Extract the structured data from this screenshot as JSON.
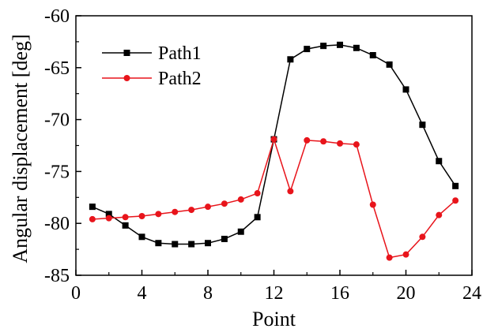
{
  "chart_data": {
    "type": "line",
    "xlabel": "Point",
    "ylabel": "Angular displacement [deg]",
    "xlim": [
      0,
      24
    ],
    "ylim": [
      -85,
      -60
    ],
    "xticks": [
      0,
      4,
      8,
      12,
      16,
      20,
      24
    ],
    "yticks": [
      -85,
      -80,
      -75,
      -70,
      -65,
      -60
    ],
    "xtick_labels": [
      "0",
      "4",
      "8",
      "12",
      "16",
      "20",
      "24"
    ],
    "ytick_labels": [
      "-85",
      "-80",
      "-75",
      "-70",
      "-65",
      "-60"
    ],
    "grid": false,
    "legend_position": "top-left",
    "x": [
      1,
      2,
      3,
      4,
      5,
      6,
      7,
      8,
      9,
      10,
      11,
      12,
      13,
      14,
      15,
      16,
      17,
      18,
      19,
      20,
      21,
      22,
      23
    ],
    "series": [
      {
        "name": "Path1",
        "color": "#000000",
        "marker": "square",
        "values": [
          -78.4,
          -79.1,
          -80.2,
          -81.3,
          -81.9,
          -82.0,
          -82.0,
          -81.9,
          -81.5,
          -80.8,
          -79.4,
          -71.9,
          -64.2,
          -63.2,
          -62.9,
          -62.8,
          -63.1,
          -63.8,
          -64.7,
          -67.1,
          -70.5,
          -74.0,
          -76.4
        ]
      },
      {
        "name": "Path2",
        "color": "#e8141b",
        "marker": "circle",
        "values": [
          -79.6,
          -79.5,
          -79.4,
          -79.3,
          -79.1,
          -78.9,
          -78.7,
          -78.4,
          -78.1,
          -77.7,
          -77.1,
          -71.9,
          -76.9,
          -72.0,
          -72.1,
          -72.3,
          -72.4,
          -78.2,
          -83.3,
          -83.0,
          -81.3,
          -79.2,
          -77.8
        ]
      }
    ]
  }
}
